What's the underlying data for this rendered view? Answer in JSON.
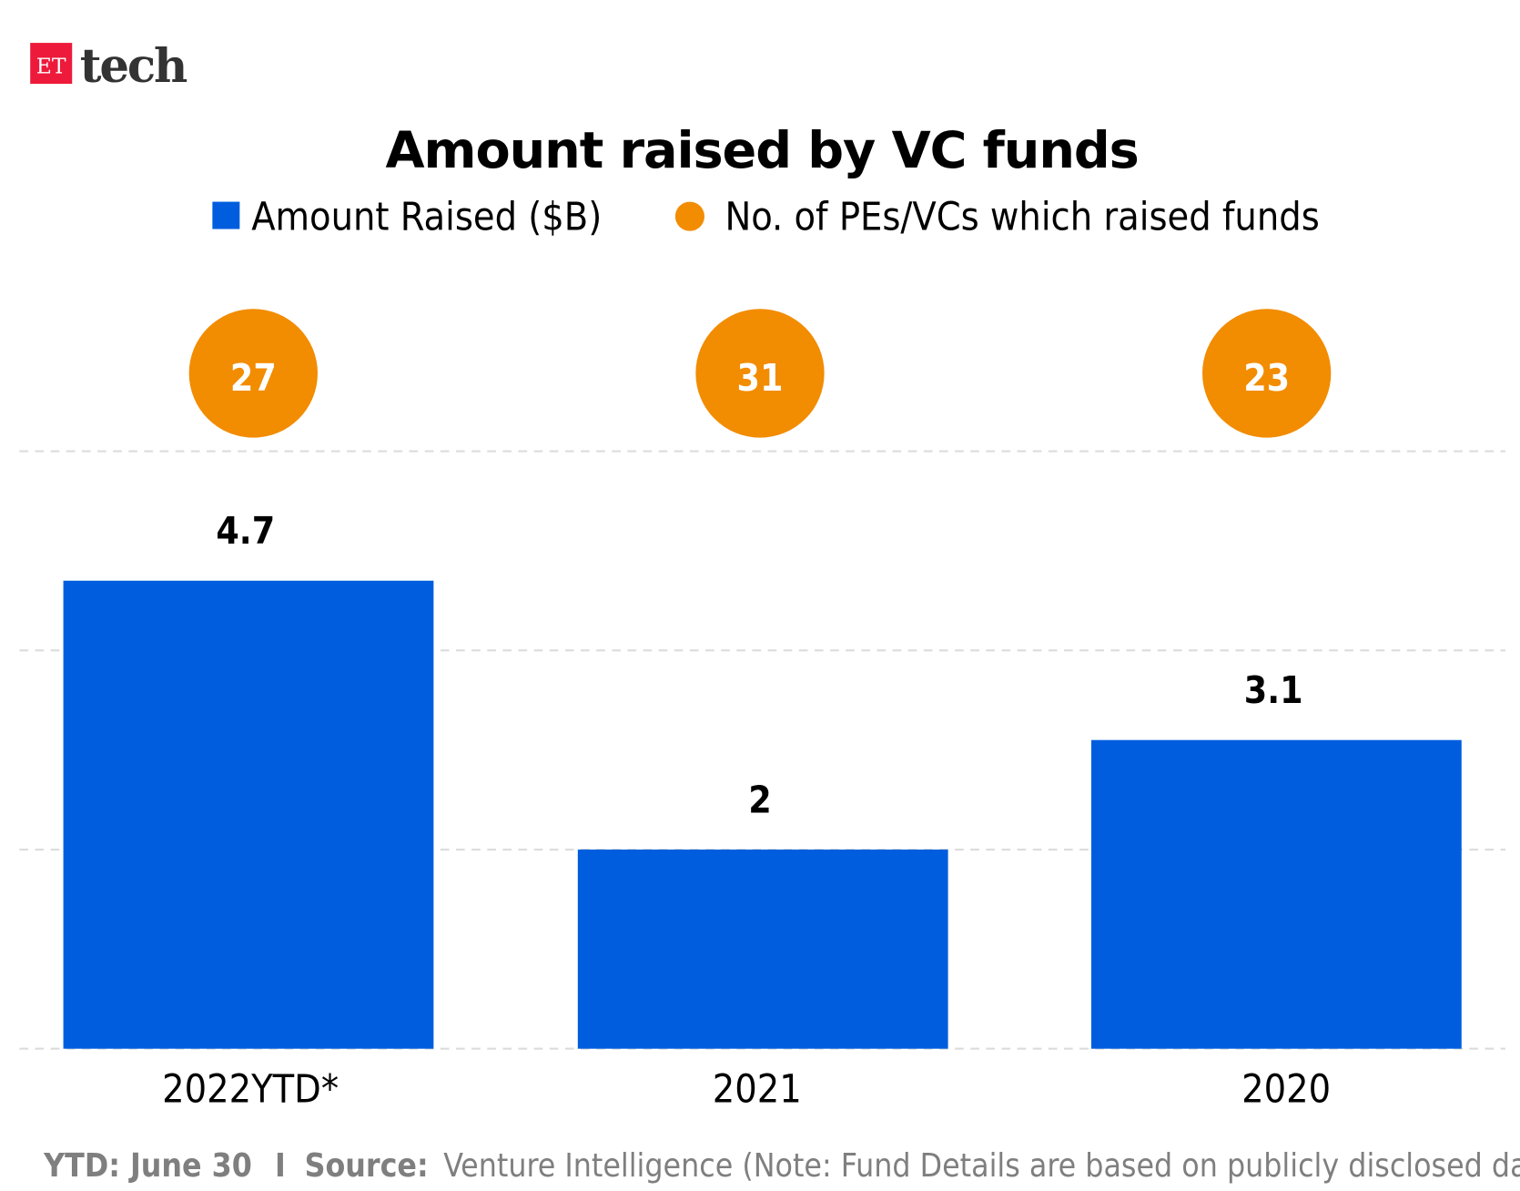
{
  "logo": {
    "badge": "ET",
    "word": "tech",
    "badge_color": "#ED1A3B"
  },
  "chart_data": {
    "type": "bar",
    "title": "Amount raised by VC funds",
    "categories": [
      "2022YTD*",
      "2021",
      "2020"
    ],
    "series": [
      {
        "name": "Amount Raised ($B)",
        "values": [
          4.7,
          2,
          3.1
        ],
        "labels": [
          "4.7",
          "2",
          "3.1"
        ],
        "color": "#005EDE",
        "mark": "bar"
      },
      {
        "name": "No. of PEs/VCs which raised funds",
        "values": [
          27,
          31,
          23
        ],
        "labels": [
          "27",
          "31",
          "23"
        ],
        "color": "#F28C00",
        "mark": "circle"
      }
    ],
    "ylim": [
      0,
      6
    ],
    "gridlines": [
      0,
      2,
      4,
      6
    ],
    "grid": true,
    "legend": "top-center",
    "xlabel": "",
    "ylabel": ""
  },
  "footer": {
    "ytd_label": "YTD: June 30",
    "separator": "I",
    "source_label": "Source:",
    "source_text": "Venture Intelligence (Note: Fund Details are based on publicly disclosed data.)"
  }
}
